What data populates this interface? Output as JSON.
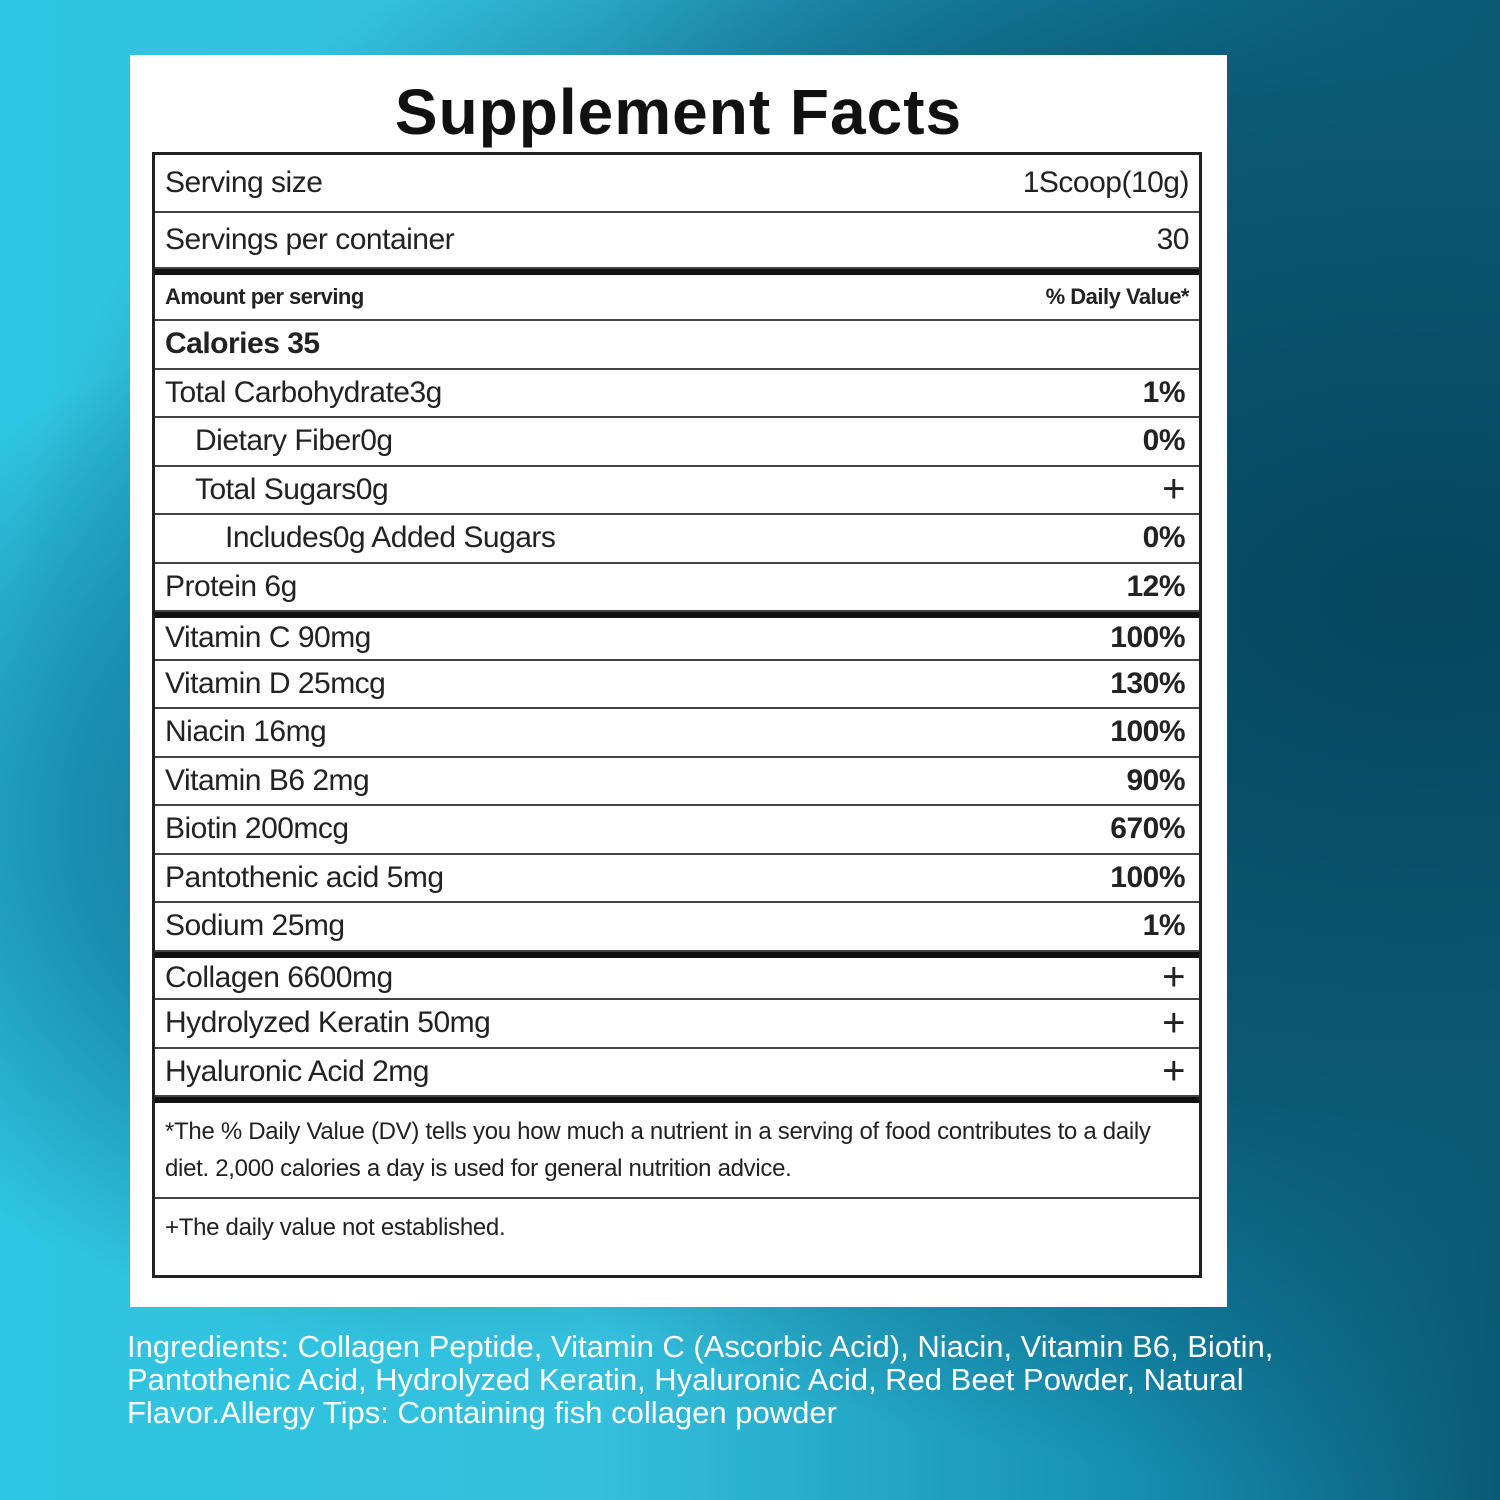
{
  "title": "Supplement Facts",
  "serving": [
    {
      "label": "Serving size",
      "value": "1Scoop(10g)"
    },
    {
      "label": "Servings per container",
      "value": "30"
    }
  ],
  "header": {
    "amount": "Amount per serving",
    "daily_value": "% Daily Value*"
  },
  "sections": [
    [
      {
        "name": "Calories  35",
        "bold": true
      },
      {
        "name": "Total Carbohydrate3g",
        "dv": "1%"
      },
      {
        "name": "Dietary Fiber0g",
        "dv": "0%",
        "indent": 1
      },
      {
        "name": "Total Sugars0g",
        "dv": "+",
        "indent": 1
      },
      {
        "name": "Includes0g Added Sugars",
        "dv": "0%",
        "indent": 2
      },
      {
        "name": "Protein 6g",
        "dv": "12%"
      }
    ],
    [
      {
        "name": "Vitamin C 90mg",
        "dv": "100%"
      },
      {
        "name": "Vitamin D 25mcg",
        "dv": "130%"
      },
      {
        "name": "Niacin 16mg",
        "dv": "100%"
      },
      {
        "name": "Vitamin B6 2mg",
        "dv": "90%"
      },
      {
        "name": "Biotin 200mcg",
        "dv": "670%"
      },
      {
        "name": "Pantothenic acid 5mg",
        "dv": "100%"
      },
      {
        "name": "Sodium 25mg",
        "dv": "1%"
      }
    ],
    [
      {
        "name": "Collagen 6600mg",
        "dv": "+"
      },
      {
        "name": "Hydrolyzed Keratin  50mg",
        "dv": "+"
      },
      {
        "name": "Hyaluronic Acid 2mg",
        "dv": "+"
      }
    ]
  ],
  "footnotes": [
    "*The % Daily Value (DV) tells you how much a nutrient in a serving of food contributes to a daily diet. 2,000 calories a day is used for general nutrition advice.",
    "+The daily value not established."
  ],
  "ingredients": "Ingredients: Collagen Peptide, Vitamin C (Ascorbic Acid), Niacin, Vitamin B6, Biotin, Pantothenic Acid, Hydrolyzed Keratin, Hyaluronic Acid, Red Beet Powder, Natural Flavor.Allergy Tips: Containing fish collagen powder"
}
